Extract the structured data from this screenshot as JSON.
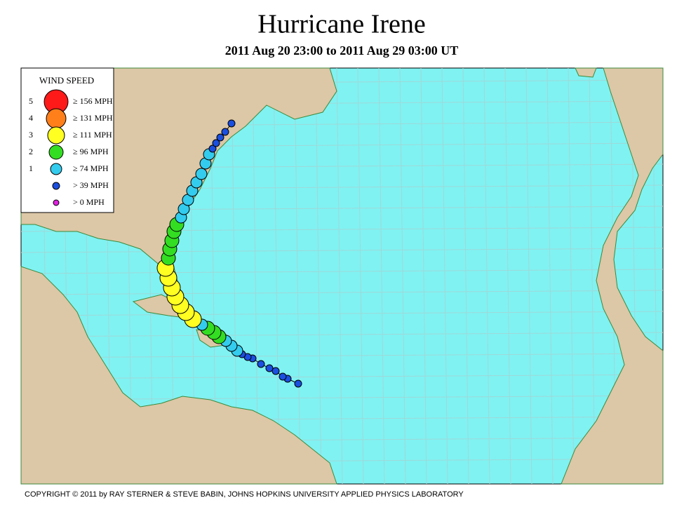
{
  "header": {
    "title": "Hurricane Irene",
    "subtitle": "2011 Aug 20 23:00 to 2011 Aug 29 03:00 UT"
  },
  "legend": {
    "title": "WIND SPEED",
    "items": [
      {
        "category": "5",
        "label": "≥ 156 MPH",
        "color": "#ff1a1a"
      },
      {
        "category": "4",
        "label": "≥ 131 MPH",
        "color": "#ff7f1a"
      },
      {
        "category": "3",
        "label": "≥ 111 MPH",
        "color": "#ffff22"
      },
      {
        "category": "2",
        "label": "≥ 96 MPH",
        "color": "#33dd22"
      },
      {
        "category": "1",
        "label": "≥ 74 MPH",
        "color": "#33ccee"
      },
      {
        "label": "> 39 MPH",
        "color": "#1a4fe0"
      },
      {
        "label": "> 0 MPH",
        "color": "#dd22dd"
      }
    ]
  },
  "footer": {
    "copyright": "COPYRIGHT © 2011 by RAY STERNER & STEVE BABIN, JOHNS HOPKINS UNIVERSITY APPLIED PHYSICS LABORATORY"
  }
}
